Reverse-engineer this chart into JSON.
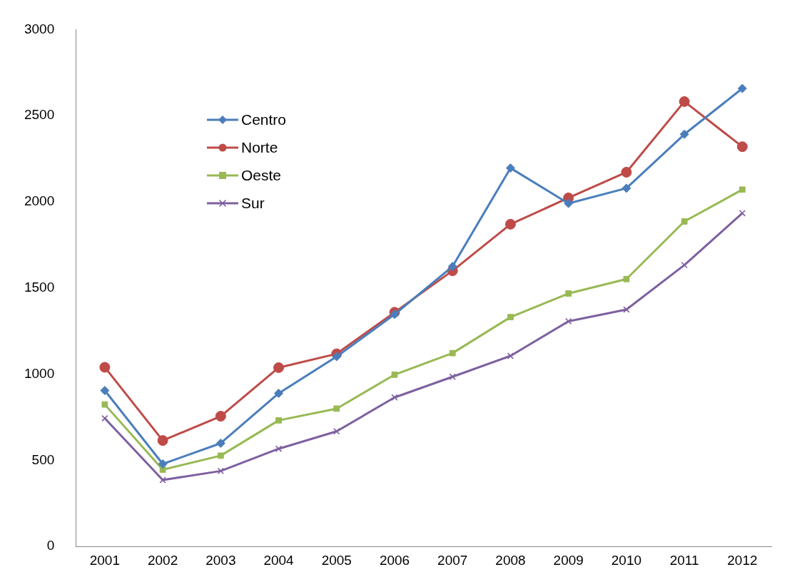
{
  "chart_data": {
    "type": "line",
    "categories": [
      "2001",
      "2002",
      "2003",
      "2004",
      "2005",
      "2006",
      "2007",
      "2008",
      "2009",
      "2010",
      "2011",
      "2012"
    ],
    "series": [
      {
        "name": "Centro",
        "color": "#4a7ebb",
        "marker": "diamond",
        "values": [
          905,
          479,
          599,
          889,
          1102,
          1347,
          1625,
          2196,
          1991,
          2079,
          2392,
          2658
        ]
      },
      {
        "name": "Norte",
        "color": "#be4b48",
        "marker": "circle",
        "values": [
          1040,
          615,
          756,
          1038,
          1118,
          1359,
          1600,
          1870,
          2023,
          2172,
          2582,
          2320
        ]
      },
      {
        "name": "Oeste",
        "color": "#98b954",
        "marker": "square",
        "values": [
          824,
          446,
          527,
          732,
          800,
          997,
          1122,
          1331,
          1468,
          1552,
          1886,
          2071
        ]
      },
      {
        "name": "Sur",
        "color": "#7d60a0",
        "marker": "cross",
        "values": [
          744,
          386,
          438,
          567,
          668,
          865,
          985,
          1106,
          1307,
          1375,
          1633,
          1934
        ]
      }
    ],
    "ylim": [
      0,
      3000
    ],
    "yticks": [
      0,
      500,
      1000,
      1500,
      2000,
      2500,
      3000
    ],
    "grid": false,
    "legend": "top left",
    "line_style": "solid"
  }
}
